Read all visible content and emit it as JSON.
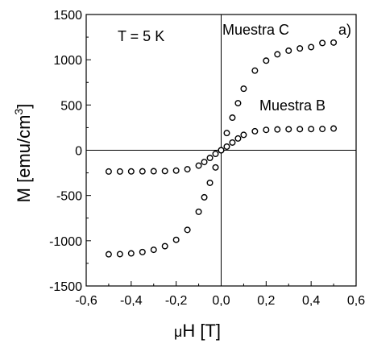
{
  "chart_data": {
    "type": "scatter",
    "xlabel_prefix": "μ",
    "xlabel_main": "H [T]",
    "ylabel_main": "M [emu/cm",
    "ylabel_sup": "3",
    "ylabel_close": "]",
    "xlim": [
      -0.6,
      0.6
    ],
    "ylim": [
      -1500,
      1500
    ],
    "x_ticks": [
      -0.6,
      -0.4,
      -0.2,
      0.0,
      0.2,
      0.4,
      0.6
    ],
    "x_tick_labels": [
      "-0,6",
      "-0,4",
      "-0,2",
      "0,0",
      "0,2",
      "0,4",
      "0,6"
    ],
    "y_ticks": [
      -1500,
      -1000,
      -500,
      0,
      500,
      1000,
      1500
    ],
    "y_tick_labels": [
      "-1500",
      "-1000",
      "-500",
      "0",
      "500",
      "1000",
      "1500"
    ],
    "annotations": [
      "T = 5 K",
      "Muestra C",
      "Muestra B",
      "a)"
    ],
    "series": [
      {
        "x": [
          -0.5,
          -0.45,
          -0.4,
          -0.35,
          -0.3,
          -0.25,
          -0.2,
          -0.15,
          -0.1,
          -0.075,
          -0.05,
          -0.025,
          0.0,
          0.025,
          0.05,
          0.075,
          0.1,
          0.15,
          0.2,
          0.25,
          0.3,
          0.35,
          0.4,
          0.45,
          0.5
        ],
        "y": [
          -1150,
          -1148,
          -1140,
          -1125,
          -1100,
          -1060,
          -990,
          -880,
          -680,
          -520,
          -360,
          -190,
          0,
          190,
          360,
          520,
          680,
          880,
          990,
          1060,
          1100,
          1125,
          1140,
          1185,
          1190
        ]
      },
      {
        "x": [
          -0.5,
          -0.45,
          -0.4,
          -0.35,
          -0.3,
          -0.25,
          -0.2,
          -0.15,
          -0.1,
          -0.075,
          -0.05,
          -0.025,
          0.0,
          0.025,
          0.05,
          0.075,
          0.1,
          0.15,
          0.2,
          0.25,
          0.3,
          0.35,
          0.4,
          0.45,
          0.5
        ],
        "y": [
          -235,
          -235,
          -234,
          -233,
          -232,
          -230,
          -225,
          -210,
          -170,
          -130,
          -85,
          -40,
          0,
          40,
          85,
          130,
          170,
          210,
          225,
          230,
          232,
          233,
          234,
          235,
          240
        ]
      }
    ],
    "grid": false
  }
}
